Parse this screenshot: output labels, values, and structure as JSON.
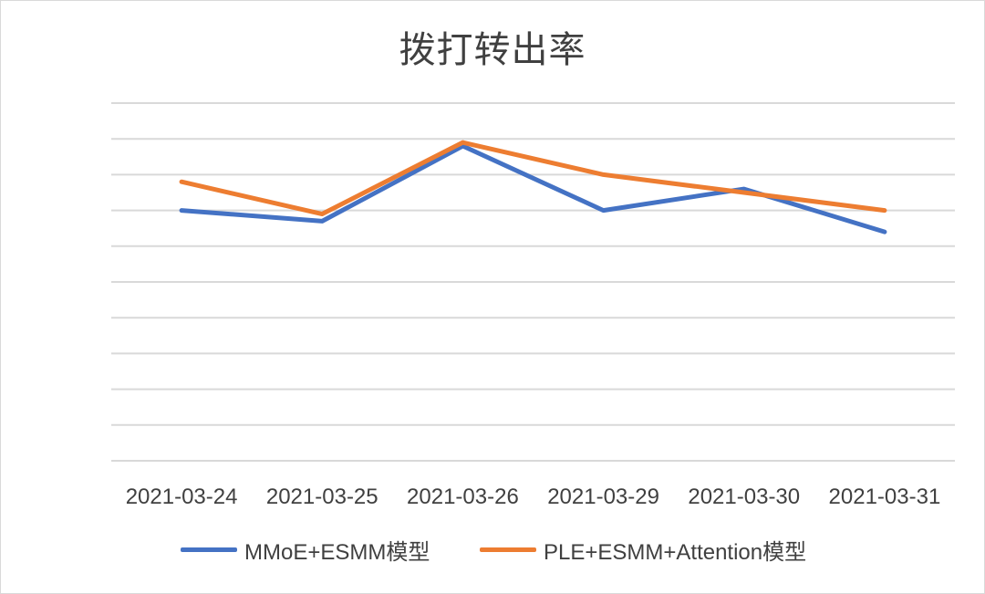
{
  "chart_data": {
    "type": "line",
    "title": "拨打转出率",
    "categories": [
      "2021-03-24",
      "2021-03-25",
      "2021-03-26",
      "2021-03-29",
      "2021-03-30",
      "2021-03-31"
    ],
    "series": [
      {
        "name": "MMoE+ESMM模型",
        "color": "#4472c4",
        "values": [
          7.0,
          6.7,
          8.8,
          7.0,
          7.6,
          6.4
        ]
      },
      {
        "name": "PLE+ESMM+Attention模型",
        "color": "#ed7d31",
        "values": [
          7.8,
          6.9,
          8.9,
          8.0,
          7.5,
          7.0
        ]
      }
    ],
    "ylim": [
      0,
      10
    ],
    "grid": true,
    "legend_position": "bottom"
  }
}
